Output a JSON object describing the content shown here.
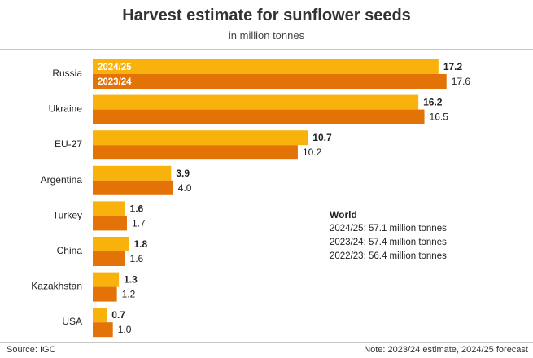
{
  "title": "Harvest estimate for sunflower seeds",
  "subtitle": "in million tonnes",
  "colors": {
    "current": "#f9b10b",
    "previous": "#e37207"
  },
  "world": {
    "title": "World",
    "lines": [
      "2024/25: 57.1 million tonnes",
      "2023/24: 57.4 million tonnes",
      "2022/23: 56.4 million tonnes"
    ]
  },
  "source": "Source:  IGC",
  "note": "Note: 2023/24 estimate, 2024/25 forecast",
  "chart_data": {
    "type": "bar",
    "orientation": "horizontal",
    "categories": [
      "Russia",
      "Ukraine",
      "EU-27",
      "Argentina",
      "Turkey",
      "China",
      "Kazakhstan",
      "USA"
    ],
    "series": [
      {
        "name": "2024/25",
        "values": [
          17.2,
          16.2,
          10.7,
          3.9,
          1.6,
          1.8,
          1.3,
          0.7
        ]
      },
      {
        "name": "2023/24",
        "values": [
          17.6,
          16.5,
          10.2,
          4.0,
          1.7,
          1.6,
          1.2,
          1.0
        ]
      }
    ],
    "title": "Harvest estimate for sunflower seeds",
    "subtitle": "in million tonnes"
  }
}
